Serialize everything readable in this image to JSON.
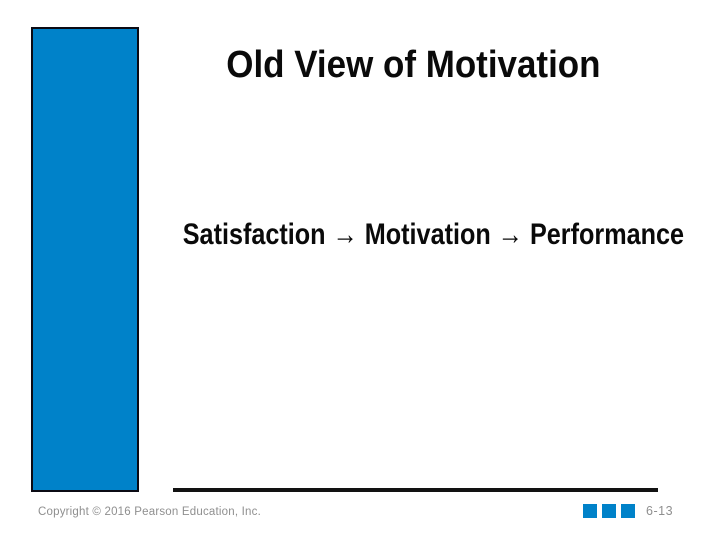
{
  "slide": {
    "title": "Old View of Motivation",
    "body_text": "Satisfaction → Motivation → Performance",
    "footer": {
      "copyright": "Copyright © 2016 Pearson Education, Inc.",
      "page_number": "6-13"
    },
    "decor": {
      "left_bar_color": "#0082C9",
      "left_bar_border_color": "#0B0B14",
      "divider_color": "#121212",
      "footer_text_color": "#8F8F8F",
      "text_color": "#0A0A0A",
      "marker_square_color": "#0082C9",
      "marker_square_count": 3
    }
  }
}
